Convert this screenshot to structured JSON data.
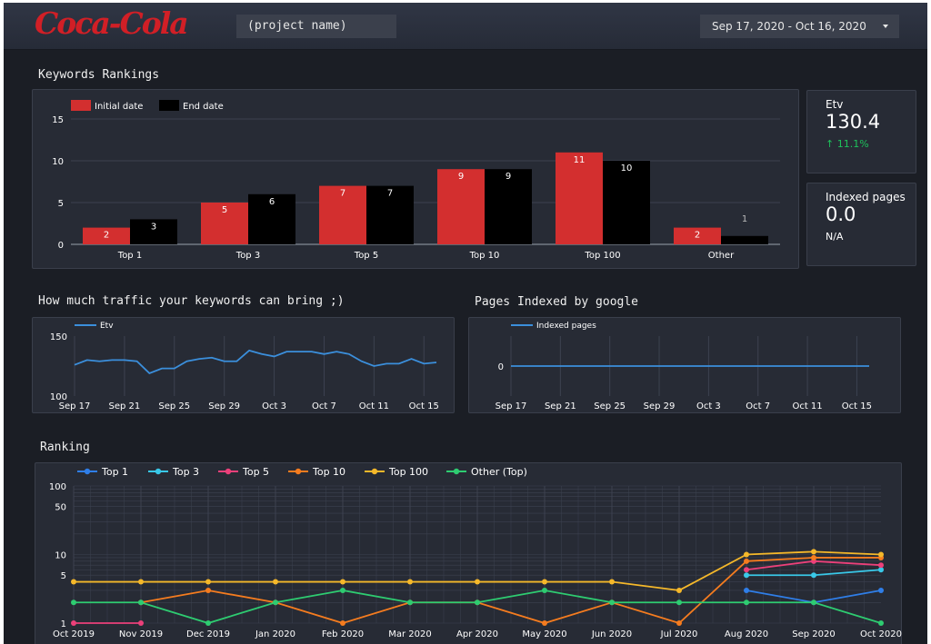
{
  "header": {
    "logo_text": "Coca-Cola",
    "project_name": "(project name)",
    "date_range": "Sep 17, 2020 - Oct 16, 2020"
  },
  "sections": {
    "keywords_rankings": "Keywords Rankings",
    "traffic": "How much traffic your keywords can bring ;)",
    "pages_indexed": "Pages Indexed by google",
    "ranking": "Ranking"
  },
  "scorecards": [
    {
      "label": "Etv",
      "value": "130.4",
      "delta": "↑ 11.1%",
      "delta_color": "#1ec15b"
    },
    {
      "label": "Indexed pages",
      "value": "0.0",
      "delta": "N/A",
      "delta_color": "#ffffff"
    }
  ],
  "colors": {
    "initial": "#d32f2f",
    "end": "#000000",
    "line": "#3b8fdc",
    "grid": "#3d4250",
    "axis_text": "#ffffff"
  },
  "chart_data": [
    {
      "type": "bar",
      "categories": [
        "Top 1",
        "Top 3",
        "Top 5",
        "Top 10",
        "Top 100",
        "Other"
      ],
      "series": [
        {
          "name": "Initial date",
          "values": [
            2,
            5,
            7,
            9,
            11,
            2
          ],
          "color": "#d32f2f"
        },
        {
          "name": "End date",
          "values": [
            3,
            6,
            7,
            9,
            10,
            1
          ],
          "color": "#000000"
        }
      ],
      "ylim": [
        0,
        15
      ],
      "yticks": [
        0,
        5,
        10,
        15
      ],
      "legend": "top-left"
    },
    {
      "type": "line",
      "x": [
        "Sep 17",
        "Sep 18",
        "Sep 19",
        "Sep 20",
        "Sep 21",
        "Sep 22",
        "Sep 23",
        "Sep 24",
        "Sep 25",
        "Sep 26",
        "Sep 27",
        "Sep 28",
        "Sep 29",
        "Sep 30",
        "Oct 1",
        "Oct 2",
        "Oct 3",
        "Oct 4",
        "Oct 5",
        "Oct 6",
        "Oct 7",
        "Oct 8",
        "Oct 9",
        "Oct 10",
        "Oct 11",
        "Oct 12",
        "Oct 13",
        "Oct 14",
        "Oct 15",
        "Oct 16"
      ],
      "xticks": [
        "Sep 17",
        "Sep 21",
        "Sep 25",
        "Sep 29",
        "Oct 3",
        "Oct 7",
        "Oct 11",
        "Oct 15"
      ],
      "series": [
        {
          "name": "Etv",
          "values": [
            126,
            130,
            129,
            130,
            130,
            129,
            119,
            123,
            123,
            129,
            131,
            132,
            129,
            129,
            138,
            135,
            133,
            137,
            137,
            137,
            135,
            137,
            135,
            129,
            125,
            127,
            127,
            131,
            127,
            128
          ],
          "color": "#3b8fdc"
        }
      ],
      "ylim": [
        100,
        150
      ],
      "yticks": [
        100,
        150
      ],
      "legend": "top-left"
    },
    {
      "type": "line",
      "x": [
        "Sep 17",
        "Sep 18",
        "Sep 19",
        "Sep 20",
        "Sep 21",
        "Sep 22",
        "Sep 23",
        "Sep 24",
        "Sep 25",
        "Sep 26",
        "Sep 27",
        "Sep 28",
        "Sep 29",
        "Sep 30",
        "Oct 1",
        "Oct 2",
        "Oct 3",
        "Oct 4",
        "Oct 5",
        "Oct 6",
        "Oct 7",
        "Oct 8",
        "Oct 9",
        "Oct 10",
        "Oct 11",
        "Oct 12",
        "Oct 13",
        "Oct 14",
        "Oct 15",
        "Oct 16"
      ],
      "xticks": [
        "Sep 17",
        "Sep 21",
        "Sep 25",
        "Sep 29",
        "Oct 3",
        "Oct 7",
        "Oct 11",
        "Oct 15"
      ],
      "series": [
        {
          "name": "Indexed pages",
          "values": [
            0,
            0,
            0,
            0,
            0,
            0,
            0,
            0,
            0,
            0,
            0,
            0,
            0,
            0,
            0,
            0,
            0,
            0,
            0,
            0,
            0,
            0,
            0,
            0,
            0,
            0,
            0,
            0,
            0,
            0
          ],
          "color": "#3b8fdc"
        }
      ],
      "yticks": [
        0
      ],
      "legend": "top-left"
    },
    {
      "type": "line",
      "scale": "log",
      "x": [
        "Oct 2019",
        "Nov 2019",
        "Dec 2019",
        "Jan 2020",
        "Feb 2020",
        "Mar 2020",
        "Apr 2020",
        "May 2020",
        "Jun 2020",
        "Jul 2020",
        "Aug 2020",
        "Sep 2020",
        "Oct 2020"
      ],
      "ylim": [
        1,
        100
      ],
      "yticks": [
        1,
        5,
        10,
        50,
        100
      ],
      "legend": "top-left",
      "series": [
        {
          "name": "Top 1",
          "color": "#2f7ee8",
          "values": [
            null,
            null,
            null,
            null,
            null,
            null,
            null,
            null,
            null,
            null,
            3,
            2,
            3
          ]
        },
        {
          "name": "Top 3",
          "color": "#39c8e8",
          "values": [
            null,
            null,
            null,
            null,
            null,
            null,
            null,
            null,
            null,
            null,
            5,
            5,
            6
          ]
        },
        {
          "name": "Top 5",
          "color": "#ec407a",
          "values": [
            1,
            1,
            null,
            null,
            null,
            null,
            null,
            null,
            null,
            null,
            6,
            8,
            7
          ]
        },
        {
          "name": "Top 10",
          "color": "#f57c1f",
          "values": [
            null,
            2,
            3,
            2,
            1,
            2,
            2,
            1,
            2,
            1,
            8,
            9,
            9
          ]
        },
        {
          "name": "Top 100",
          "color": "#f5b82a",
          "values": [
            4,
            4,
            4,
            4,
            4,
            4,
            4,
            4,
            4,
            3,
            10,
            11,
            10
          ]
        },
        {
          "name": "Other (Top)",
          "color": "#2ecc71",
          "values": [
            2,
            2,
            1,
            2,
            3,
            2,
            2,
            3,
            2,
            2,
            2,
            2,
            1
          ]
        }
      ]
    }
  ]
}
